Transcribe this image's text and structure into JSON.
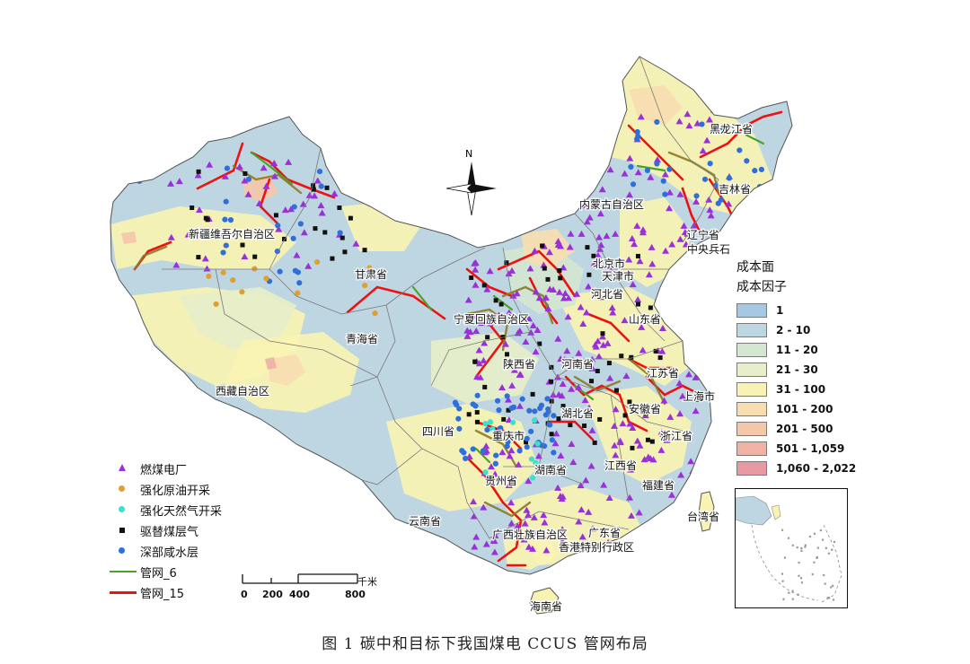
{
  "caption": "图 1  碳中和目标下我国煤电 CCUS 管网布局",
  "north_label": "N",
  "province_labels": [
    {
      "id": "heilongjiang",
      "text": "黑龙江省"
    },
    {
      "id": "jilin",
      "text": "吉林省"
    },
    {
      "id": "liaoning",
      "text": "辽宁省"
    },
    {
      "id": "neimenggu",
      "text": "内蒙古自治区"
    },
    {
      "id": "xinjiang",
      "text": "新疆维吾尔自治区"
    },
    {
      "id": "gansu",
      "text": "甘肃省"
    },
    {
      "id": "qinghai",
      "text": "青海省"
    },
    {
      "id": "xizang",
      "text": "西藏自治区"
    },
    {
      "id": "ningxia",
      "text": "宁夏回族自治区"
    },
    {
      "id": "beijing",
      "text": "北京市"
    },
    {
      "id": "tianjin",
      "text": "天津市"
    },
    {
      "id": "hebei",
      "text": "河北省"
    },
    {
      "id": "shandong",
      "text": "山东省"
    },
    {
      "id": "shaanxi",
      "text": "陕西省"
    },
    {
      "id": "henan",
      "text": "河南省"
    },
    {
      "id": "jiangsu",
      "text": "江苏省"
    },
    {
      "id": "shanghai",
      "text": "上海市"
    },
    {
      "id": "anhui",
      "text": "安徽省"
    },
    {
      "id": "hubei",
      "text": "湖北省"
    },
    {
      "id": "zhejiang",
      "text": "浙江省"
    },
    {
      "id": "sichuan",
      "text": "四川省"
    },
    {
      "id": "chongqing",
      "text": "重庆市"
    },
    {
      "id": "guizhou",
      "text": "贵州省"
    },
    {
      "id": "hunan",
      "text": "湖南省"
    },
    {
      "id": "jiangxi",
      "text": "江西省"
    },
    {
      "id": "fujian",
      "text": "福建省"
    },
    {
      "id": "taiwan",
      "text": "台湾省"
    },
    {
      "id": "yunnan",
      "text": "云南省"
    },
    {
      "id": "guangxi",
      "text": "广西壮族自治区"
    },
    {
      "id": "guangdong",
      "text": "广东省"
    },
    {
      "id": "hongkong",
      "text": "香港特别行政区"
    },
    {
      "id": "hainan",
      "text": "海南省"
    },
    {
      "id": "zhongyong",
      "text": "中央兵石"
    }
  ],
  "legend_points": [
    {
      "key": "coal",
      "label": "燃煤电厂",
      "symbol": "triangle",
      "color": "#9b30d9"
    },
    {
      "key": "eor",
      "label": "强化原油开采",
      "symbol": "dot",
      "color": "#e0a030"
    },
    {
      "key": "egr",
      "label": "强化天然气开采",
      "symbol": "dot",
      "color": "#3fe0c8"
    },
    {
      "key": "ecbm",
      "label": "驱替煤层气",
      "symbol": "square",
      "color": "#111111"
    },
    {
      "key": "saline",
      "label": "深部咸水层",
      "symbol": "dot",
      "color": "#2f6fdc"
    },
    {
      "key": "net6",
      "label": "管网_6",
      "symbol": "line",
      "color": "#49a32a"
    },
    {
      "key": "net15",
      "label": "管网_15",
      "symbol": "line",
      "color": "#ee1111"
    }
  ],
  "cost_legend": {
    "title": "成本面",
    "subtitle": "成本因子",
    "classes": [
      {
        "label": "1",
        "color": "#a6c8e4"
      },
      {
        "label": "2 - 10",
        "color": "#bed5e2"
      },
      {
        "label": "11 - 20",
        "color": "#d2e6d0"
      },
      {
        "label": "21 - 30",
        "color": "#e6efc9"
      },
      {
        "label": "31 - 100",
        "color": "#f8f3b3"
      },
      {
        "label": "101 - 200",
        "color": "#f7ddb0"
      },
      {
        "label": "201 - 500",
        "color": "#f4c7a8"
      },
      {
        "label": "501 - 1,059",
        "color": "#eeb2a6"
      },
      {
        "label": "1,060 - 2,022",
        "color": "#e89aa2"
      }
    ]
  },
  "scale_bar": {
    "ticks": [
      "0",
      "200",
      "400",
      "800"
    ],
    "unit": "千米"
  }
}
